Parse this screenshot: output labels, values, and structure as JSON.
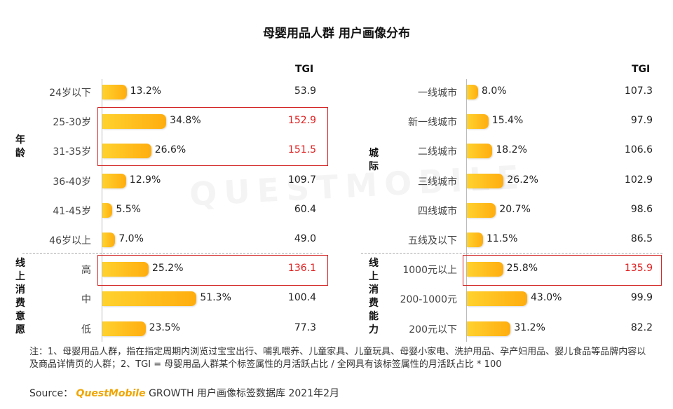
{
  "title": "母婴用品人群 用户画像分布",
  "watermark": "QUESTMOBILE",
  "tgi_header": "TGI",
  "left_labels": {
    "age": "年龄",
    "spend": "线上消费意愿"
  },
  "right_labels": {
    "city": "城际",
    "spend": "线上消费能力"
  },
  "chart_data": [
    {
      "type": "bar",
      "name": "age",
      "categories": [
        "24岁以下",
        "25-30岁",
        "31-35岁",
        "36-40岁",
        "41-45岁",
        "46岁以上"
      ],
      "values": [
        13.2,
        34.8,
        26.6,
        12.9,
        5.5,
        7.0
      ],
      "labels": [
        "13.2%",
        "34.8%",
        "26.6%",
        "12.9%",
        "5.5%",
        "7.0%"
      ],
      "tgi": [
        "53.9",
        "152.9",
        "151.5",
        "109.7",
        "60.4",
        "49.0"
      ],
      "highlight": [
        false,
        true,
        true,
        false,
        false,
        false
      ]
    },
    {
      "type": "bar",
      "name": "consumption_willingness",
      "categories": [
        "高",
        "中",
        "低"
      ],
      "values": [
        25.2,
        51.3,
        23.5
      ],
      "labels": [
        "25.2%",
        "51.3%",
        "23.5%"
      ],
      "tgi": [
        "136.1",
        "100.4",
        "77.3"
      ],
      "highlight": [
        true,
        false,
        false
      ]
    },
    {
      "type": "bar",
      "name": "city_tier",
      "categories": [
        "一线城市",
        "新一线城市",
        "二线城市",
        "三线城市",
        "四线城市",
        "五线及以下"
      ],
      "values": [
        8.0,
        15.4,
        18.2,
        26.2,
        20.7,
        11.5
      ],
      "labels": [
        "8.0%",
        "15.4%",
        "18.2%",
        "26.2%",
        "20.7%",
        "11.5%"
      ],
      "tgi": [
        "107.3",
        "97.9",
        "106.6",
        "102.9",
        "98.6",
        "86.5"
      ],
      "highlight": [
        false,
        false,
        false,
        false,
        false,
        false
      ]
    },
    {
      "type": "bar",
      "name": "consumption_ability",
      "categories": [
        "1000元以上",
        "200-1000元",
        "200元以下"
      ],
      "values": [
        25.8,
        43.0,
        31.2
      ],
      "labels": [
        "25.8%",
        "43.0%",
        "31.2%"
      ],
      "tgi": [
        "135.9",
        "99.9",
        "82.2"
      ],
      "highlight": [
        true,
        false,
        false
      ]
    }
  ],
  "colors": {
    "bar_start": "#ffd22e",
    "bar_end": "#ffad0f",
    "highlight": "#e02020",
    "box": "#d32626"
  },
  "note": "注：1、母婴用品人群，指在指定周期内浏览过宝宝出行、哺乳喂养、儿童家具、儿童玩具、母婴小家电、洗护用品、孕产妇用品、婴儿食品等品牌内容以及商品详情页的人群；2、TGI = 母婴用品人群某个标签属性的月活跃占比 / 全网具有该标签属性的月活跃占比 * 100",
  "source": {
    "label": "Source：",
    "brand": "QuestMobile",
    "text": " GROWTH 用户画像标签数据库 2021年2月"
  }
}
